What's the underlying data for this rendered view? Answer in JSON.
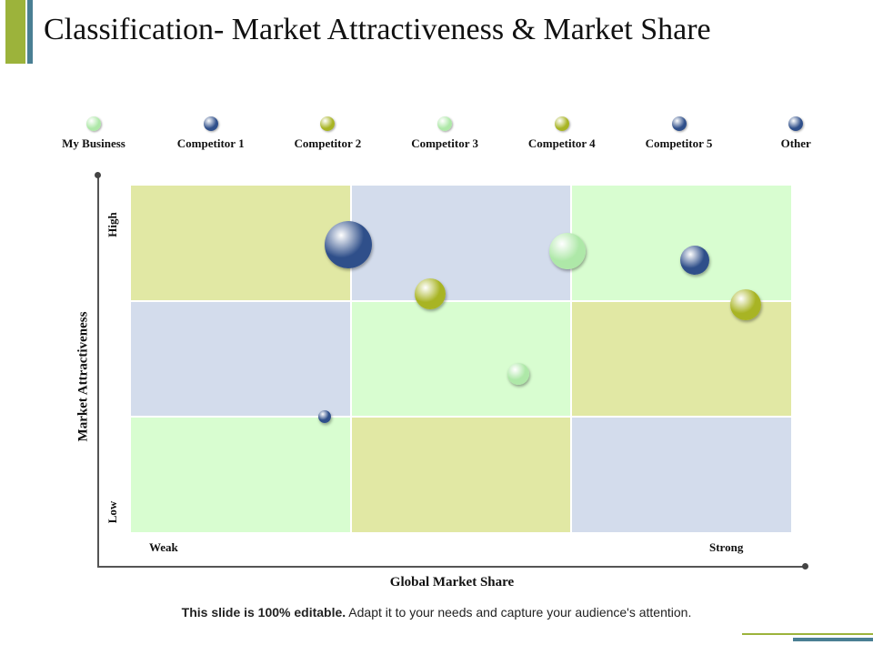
{
  "title": "Classification- Market Attractiveness & Market Share",
  "colors": {
    "accent_green": "#9cb33b",
    "accent_teal": "#4a7f93",
    "cell_olive": "#e1e8a4",
    "cell_blue": "#d3dcec",
    "cell_green": "#d8fdd0",
    "dot_light_green": "#aee8a8",
    "dot_navy": "#2f4f8a",
    "dot_olive": "#a8b424"
  },
  "legend": [
    {
      "label": "My Business",
      "color": "#aee8a8"
    },
    {
      "label": "Competitor  1",
      "color": "#2f4f8a"
    },
    {
      "label": "Competitor  2",
      "color": "#a8b424"
    },
    {
      "label": "Competitor  3",
      "color": "#aee8a8"
    },
    {
      "label": "Competitor  4",
      "color": "#a8b424"
    },
    {
      "label": "Competitor  5",
      "color": "#2f4f8a"
    },
    {
      "label": "Other",
      "color": "#2f4f8a"
    }
  ],
  "chart_data": {
    "type": "scatter",
    "title": "",
    "xlabel": "Global Market Share",
    "ylabel": "Market Attractiveness",
    "x_tick_labels": [
      "Weak",
      "Strong"
    ],
    "y_tick_labels": [
      "Low",
      "High"
    ],
    "xlim": [
      0,
      3
    ],
    "ylim": [
      0,
      3
    ],
    "grid": "3x3",
    "legend_position": "top",
    "cells": [
      {
        "col": 0,
        "row": 2,
        "color": "#e1e8a4"
      },
      {
        "col": 1,
        "row": 2,
        "color": "#d3dcec"
      },
      {
        "col": 2,
        "row": 2,
        "color": "#d8fdd0"
      },
      {
        "col": 0,
        "row": 1,
        "color": "#d3dcec"
      },
      {
        "col": 1,
        "row": 1,
        "color": "#d8fdd0"
      },
      {
        "col": 2,
        "row": 1,
        "color": "#e1e8a4"
      },
      {
        "col": 0,
        "row": 0,
        "color": "#d8fdd0"
      },
      {
        "col": 1,
        "row": 0,
        "color": "#e1e8a4"
      },
      {
        "col": 2,
        "row": 0,
        "color": "#d3dcec"
      }
    ],
    "points": [
      {
        "x": 0.99,
        "y": 2.48,
        "size": 52,
        "color": "#2f4f8a"
      },
      {
        "x": 1.36,
        "y": 2.06,
        "size": 34,
        "color": "#a8b424"
      },
      {
        "x": 1.98,
        "y": 2.43,
        "size": 40,
        "color": "#aee8a8"
      },
      {
        "x": 2.56,
        "y": 2.35,
        "size": 32,
        "color": "#2f4f8a"
      },
      {
        "x": 2.79,
        "y": 1.97,
        "size": 34,
        "color": "#a8b424"
      },
      {
        "x": 1.76,
        "y": 1.37,
        "size": 24,
        "color": "#aee8a8"
      },
      {
        "x": 0.88,
        "y": 1.0,
        "size": 14,
        "color": "#2f4f8a"
      }
    ]
  },
  "footer": {
    "bold": "This slide is 100% editable.",
    "rest": " Adapt it to your needs and capture your audience's attention."
  }
}
